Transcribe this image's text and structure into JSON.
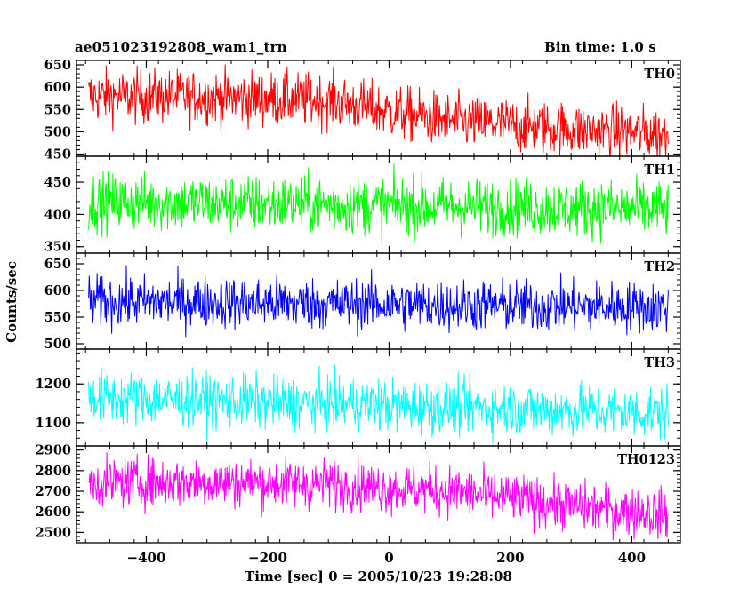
{
  "header": {
    "title": "ae051023192808_wam1_trn",
    "bin_time": "Bin time: 1.0 s"
  },
  "chart_data": {
    "type": "line",
    "title": "ae051023192808_wam1_trn",
    "subtitle": "Bin time: 1.0 s",
    "xlabel": "Time [sec] 0 = 2005/10/23 19:28:08",
    "ylabel": "Counts/sec",
    "xlim": [
      -515,
      480
    ],
    "xticks": [
      -400,
      -200,
      0,
      200,
      400
    ],
    "data_range_x": [
      -495,
      460
    ],
    "panels": [
      {
        "name": "TH0",
        "color": "#ff0000",
        "ylim": [
          445,
          660
        ],
        "yticks": [
          450,
          500,
          550,
          600,
          650
        ],
        "trend_x": [
          -495,
          -300,
          -100,
          0,
          100,
          300,
          460
        ],
        "trend_y": [
          580,
          578,
          570,
          545,
          525,
          505,
          495
        ],
        "noise_amplitude": 30
      },
      {
        "name": "TH1",
        "color": "#00ff00",
        "ylim": [
          340,
          490
        ],
        "yticks": [
          350,
          400,
          450
        ],
        "trend_x": [
          -495,
          460
        ],
        "trend_y": [
          420,
          408
        ],
        "noise_amplitude": 22
      },
      {
        "name": "TH2",
        "color": "#0000ff",
        "ylim": [
          490,
          670
        ],
        "yticks": [
          500,
          550,
          600,
          650
        ],
        "trend_x": [
          -495,
          460
        ],
        "trend_y": [
          580,
          568
        ],
        "noise_amplitude": 24
      },
      {
        "name": "TH3",
        "color": "#00ffff",
        "ylim": [
          1040,
          1290
        ],
        "yticks": [
          1100,
          1200
        ],
        "trend_x": [
          -495,
          460
        ],
        "trend_y": [
          1165,
          1125
        ],
        "noise_amplitude": 34
      },
      {
        "name": "TH0123",
        "color": "#ff00ff",
        "ylim": [
          2450,
          2920
        ],
        "yticks": [
          2500,
          2600,
          2700,
          2800,
          2900
        ],
        "trend_x": [
          -495,
          -300,
          -100,
          100,
          300,
          460
        ],
        "trend_y": [
          2740,
          2745,
          2735,
          2700,
          2630,
          2585
        ],
        "noise_amplitude": 60
      }
    ]
  }
}
